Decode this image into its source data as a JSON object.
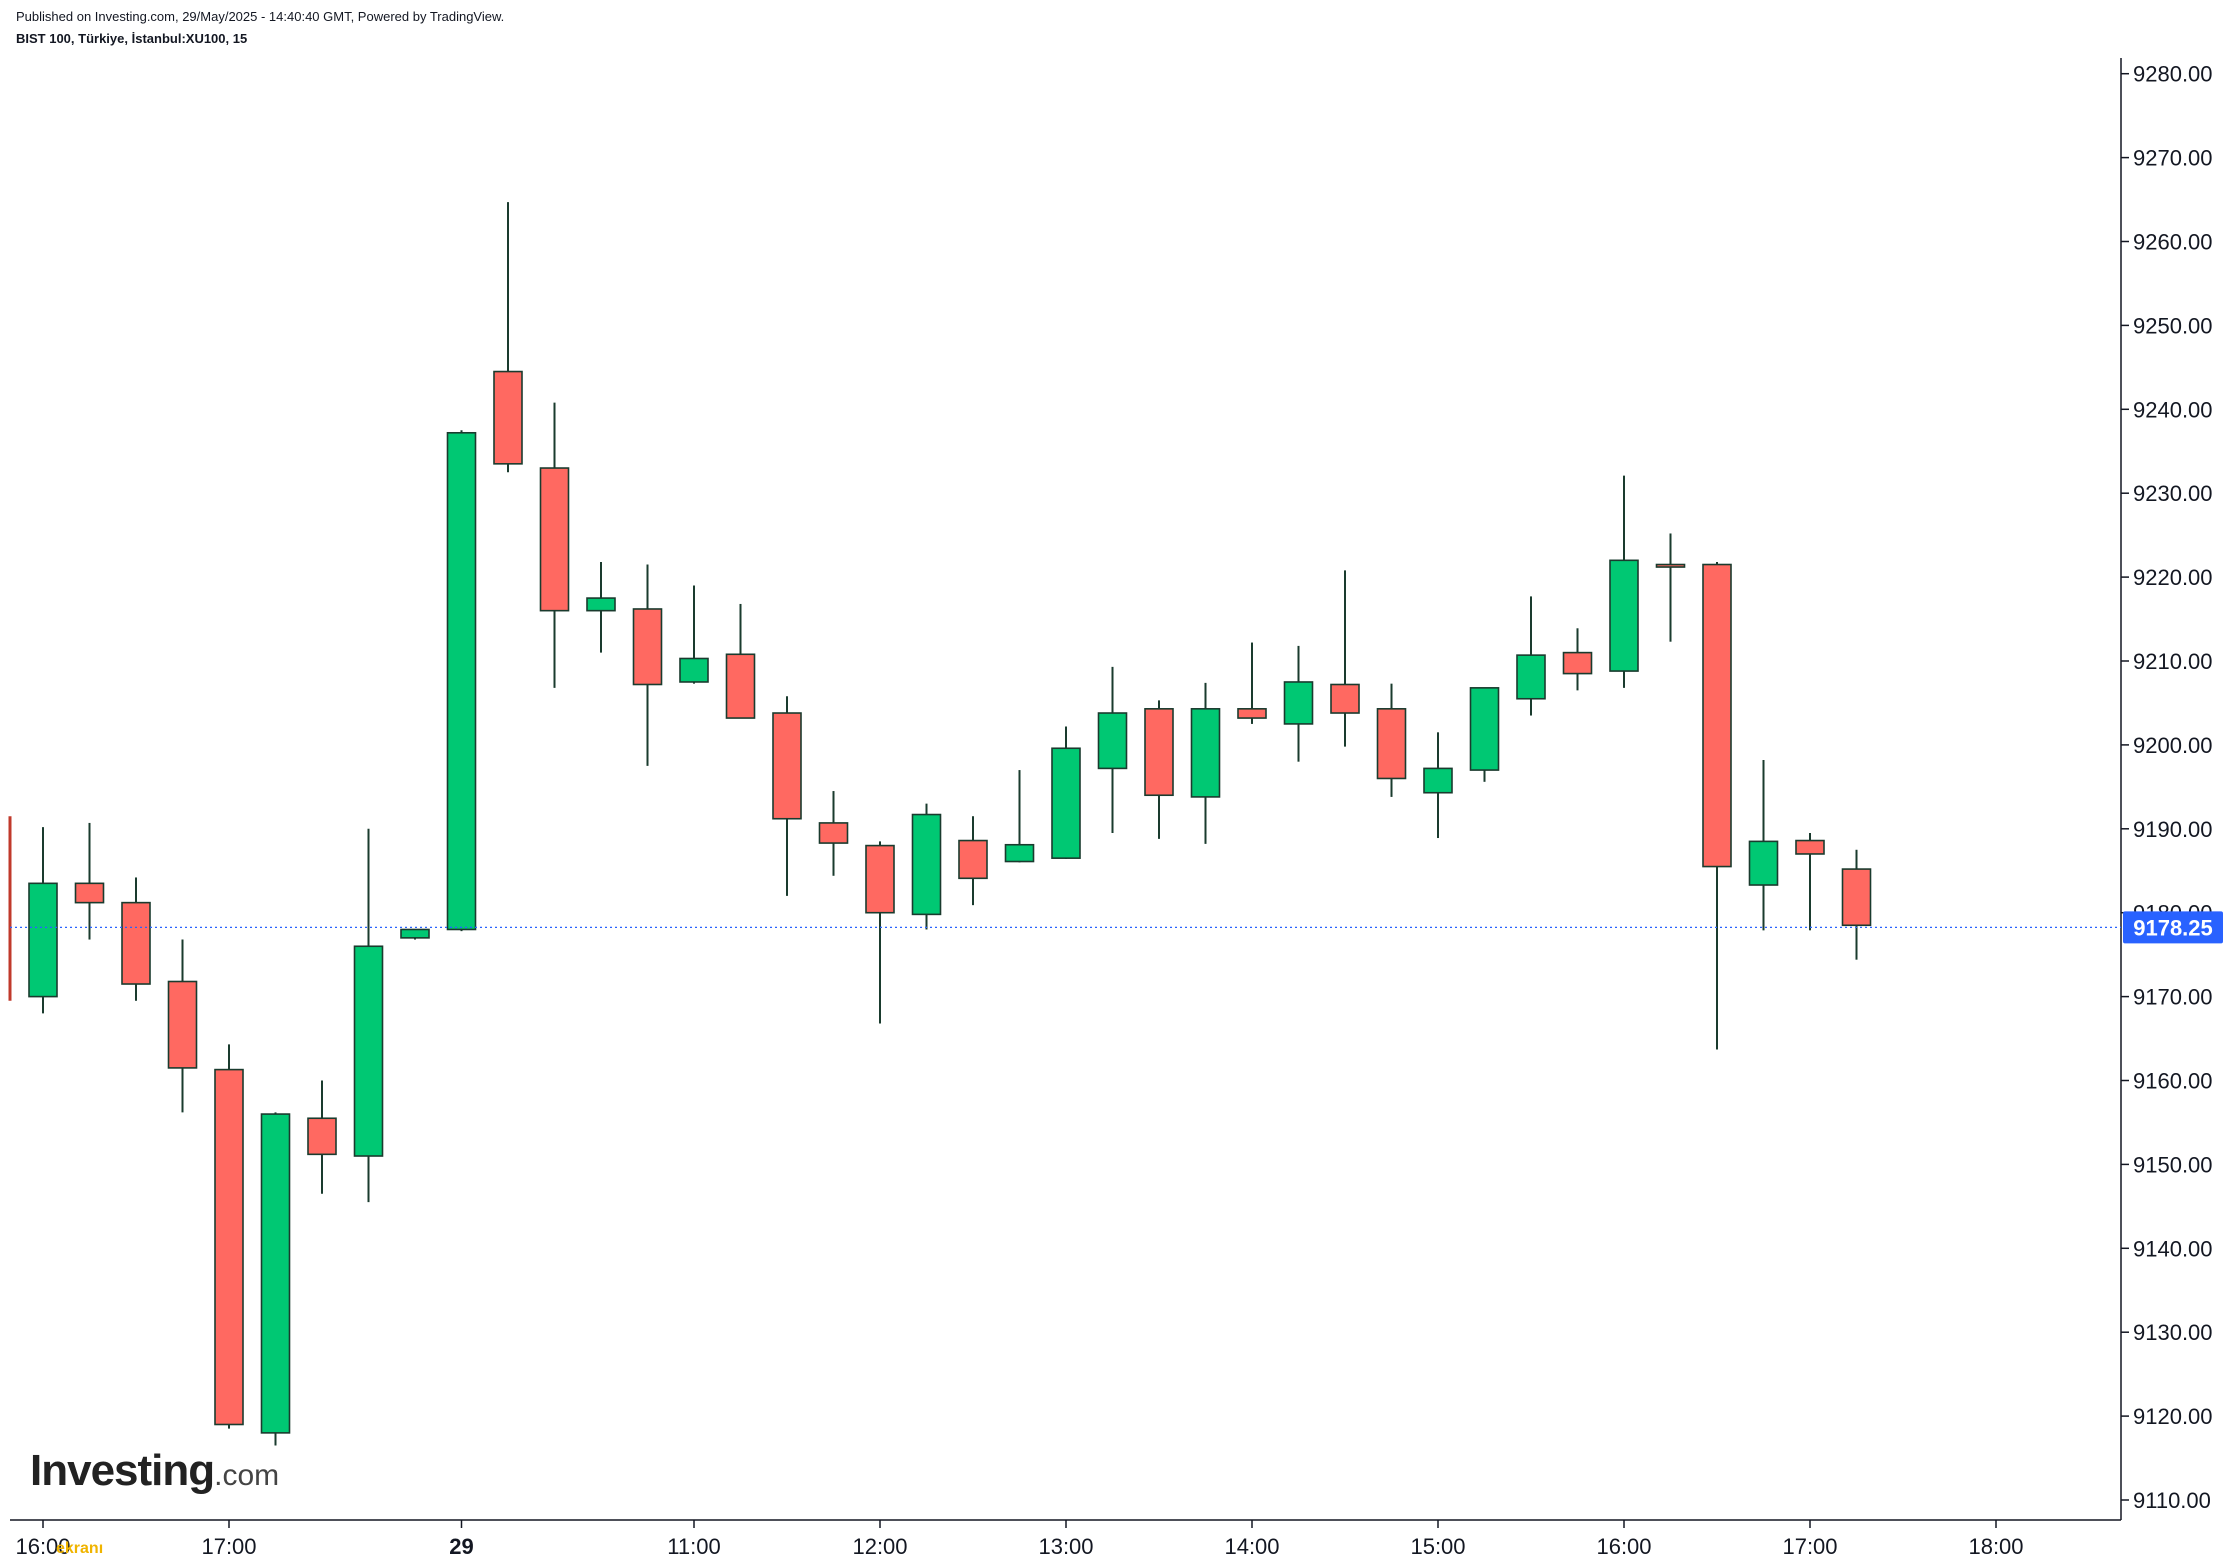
{
  "header": {
    "published": "Published on Investing.com, 29/May/2025 - 14:40:40 GMT, Powered by TradingView.",
    "symbol": "BIST 100, Türkiye, İstanbul:XU100, 15"
  },
  "logo": {
    "brand": "Investing",
    "suffix": ".com"
  },
  "watermark": "ekranı",
  "colors": {
    "up": "#00c873",
    "down": "#ff6961",
    "wick": "#1a3b2e",
    "price_tag": "#2962ff",
    "last_line": "#2962ff"
  },
  "chart_data": {
    "type": "candlestick",
    "title": "",
    "xlabel": "",
    "ylabel": "",
    "ylim": [
      9105,
      9283
    ],
    "y_ticks": [
      9110,
      9120,
      9130,
      9140,
      9150,
      9160,
      9170,
      9180,
      9190,
      9200,
      9210,
      9220,
      9230,
      9240,
      9250,
      9260,
      9270,
      9280
    ],
    "y_tick_labels": [
      "9110.00",
      "9120.00",
      "9130.00",
      "9140.00",
      "9150.00",
      "9160.00",
      "9170.00",
      "9180.00",
      "9190.00",
      "9200.00",
      "9210.00",
      "9220.00",
      "9230.00",
      "9240.00",
      "9250.00",
      "9260.00",
      "9270.00",
      "9280.00"
    ],
    "x_ticks": [
      {
        "slot": 0,
        "label": "16:00"
      },
      {
        "slot": 4,
        "label": "17:00"
      },
      {
        "slot": 9,
        "label": "29",
        "bold": true
      },
      {
        "slot": 14,
        "label": "11:00"
      },
      {
        "slot": 18,
        "label": "12:00"
      },
      {
        "slot": 22,
        "label": "13:00"
      },
      {
        "slot": 26,
        "label": "14:00"
      },
      {
        "slot": 30,
        "label": "15:00"
      },
      {
        "slot": 34,
        "label": "16:00"
      },
      {
        "slot": 38,
        "label": "17:00"
      },
      {
        "slot": 42,
        "label": "18:00"
      }
    ],
    "candles": [
      {
        "o": 9170.0,
        "h": 9190.2,
        "l": 9168.0,
        "c": 9183.5
      },
      {
        "o": 9183.5,
        "h": 9190.7,
        "l": 9176.8,
        "c": 9181.2
      },
      {
        "o": 9181.2,
        "h": 9184.2,
        "l": 9169.5,
        "c": 9171.5
      },
      {
        "o": 9171.8,
        "h": 9176.8,
        "l": 9156.2,
        "c": 9161.5
      },
      {
        "o": 9161.3,
        "h": 9164.3,
        "l": 9118.5,
        "c": 9119.0
      },
      {
        "o": 9118.0,
        "h": 9156.2,
        "l": 9116.5,
        "c": 9156.0
      },
      {
        "o": 9155.5,
        "h": 9160.0,
        "l": 9146.5,
        "c": 9151.2
      },
      {
        "o": 9151.0,
        "h": 9190.0,
        "l": 9145.5,
        "c": 9176.0
      },
      {
        "o": 9177.0,
        "h": 9178.0,
        "l": 9176.8,
        "c": 9178.0
      },
      {
        "o": 9178.0,
        "h": 9237.5,
        "l": 9177.8,
        "c": 9237.2
      },
      {
        "o": 9244.5,
        "h": 9264.7,
        "l": 9232.5,
        "c": 9233.5
      },
      {
        "o": 9233.0,
        "h": 9240.8,
        "l": 9206.8,
        "c": 9216.0
      },
      {
        "o": 9216.0,
        "h": 9221.8,
        "l": 9211.0,
        "c": 9217.5
      },
      {
        "o": 9216.2,
        "h": 9221.5,
        "l": 9197.5,
        "c": 9207.2
      },
      {
        "o": 9207.5,
        "h": 9219.0,
        "l": 9207.3,
        "c": 9210.3
      },
      {
        "o": 9210.8,
        "h": 9216.8,
        "l": 9203.2,
        "c": 9203.2
      },
      {
        "o": 9203.8,
        "h": 9205.8,
        "l": 9182.0,
        "c": 9191.2
      },
      {
        "o": 9190.7,
        "h": 9194.5,
        "l": 9184.4,
        "c": 9188.3
      },
      {
        "o": 9188.0,
        "h": 9188.5,
        "l": 9166.8,
        "c": 9180.0
      },
      {
        "o": 9179.8,
        "h": 9193.0,
        "l": 9178.0,
        "c": 9191.7
      },
      {
        "o": 9188.6,
        "h": 9191.5,
        "l": 9180.9,
        "c": 9184.1
      },
      {
        "o": 9186.1,
        "h": 9197.0,
        "l": 9186.0,
        "c": 9188.1
      },
      {
        "o": 9186.5,
        "h": 9202.2,
        "l": 9186.4,
        "c": 9199.6
      },
      {
        "o": 9197.2,
        "h": 9209.3,
        "l": 9189.5,
        "c": 9203.8
      },
      {
        "o": 9204.3,
        "h": 9205.3,
        "l": 9188.8,
        "c": 9194.0
      },
      {
        "o": 9193.8,
        "h": 9207.4,
        "l": 9188.2,
        "c": 9204.3
      },
      {
        "o": 9204.3,
        "h": 9212.2,
        "l": 9202.5,
        "c": 9203.2
      },
      {
        "o": 9202.5,
        "h": 9211.8,
        "l": 9198.0,
        "c": 9207.5
      },
      {
        "o": 9207.2,
        "h": 9220.8,
        "l": 9199.8,
        "c": 9203.8
      },
      {
        "o": 9204.3,
        "h": 9207.3,
        "l": 9193.8,
        "c": 9196.0
      },
      {
        "o": 9194.3,
        "h": 9201.5,
        "l": 9188.9,
        "c": 9197.2
      },
      {
        "o": 9197.0,
        "h": 9206.8,
        "l": 9195.6,
        "c": 9206.8
      },
      {
        "o": 9205.5,
        "h": 9217.7,
        "l": 9203.5,
        "c": 9210.7
      },
      {
        "o": 9211.0,
        "h": 9213.9,
        "l": 9206.5,
        "c": 9208.5
      },
      {
        "o": 9208.8,
        "h": 9232.1,
        "l": 9206.8,
        "c": 9222.0
      },
      {
        "o": 9221.5,
        "h": 9225.2,
        "l": 9212.3,
        "c": 9221.2
      },
      {
        "o": 9221.5,
        "h": 9221.8,
        "l": 9163.7,
        "c": 9185.5
      },
      {
        "o": 9183.3,
        "h": 9198.2,
        "l": 9177.9,
        "c": 9188.5
      },
      {
        "o": 9188.6,
        "h": 9189.5,
        "l": 9177.9,
        "c": 9187.0
      },
      {
        "o": 9185.2,
        "h": 9187.5,
        "l": 9174.4,
        "c": 9178.5
      }
    ],
    "last_price": 9178.25,
    "last_price_label": "9178.25"
  }
}
